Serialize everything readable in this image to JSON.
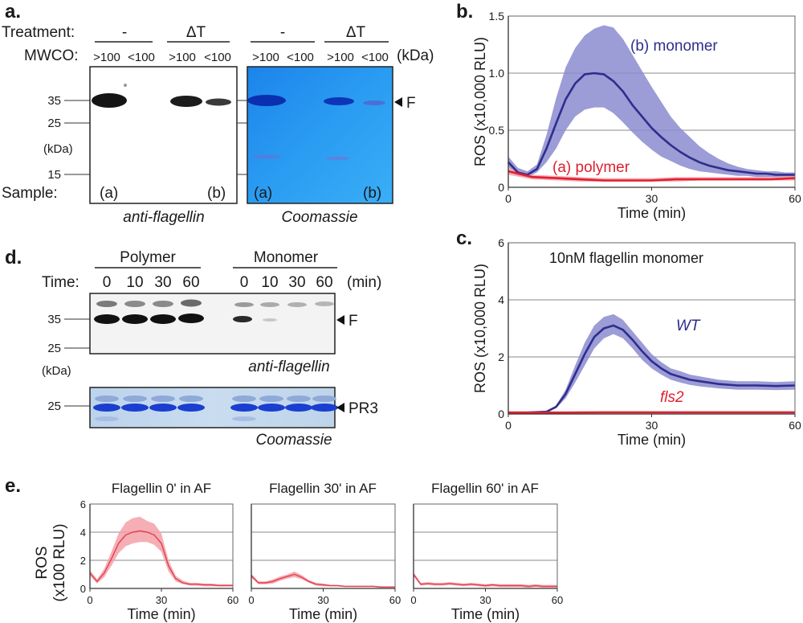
{
  "panel_a": {
    "label": "a.",
    "treatment_label": "Treatment:",
    "groups": [
      "-",
      "ΔT",
      "-",
      "ΔT"
    ],
    "mwco_label": "MWCO:",
    "mwco_values": [
      ">100",
      "<100",
      ">100",
      "<100",
      ">100",
      "<100",
      ">100",
      "<100"
    ],
    "mwco_unit": "(kDa)",
    "markers": [
      "35",
      "25",
      "15"
    ],
    "kda": "(kDa)",
    "sample_label": "Sample:",
    "samples": [
      "(a)",
      "(b)",
      "(a)",
      "(b)"
    ],
    "band_label": "F",
    "blot1_caption": "anti-flagellin",
    "blot2_caption": "Coomassie"
  },
  "panel_d": {
    "label": "d.",
    "groups": [
      "Polymer",
      "Monomer"
    ],
    "time_label": "Time:",
    "times": [
      "0",
      "10",
      "30",
      "60",
      "0",
      "10",
      "30",
      "60"
    ],
    "time_unit": "(min)",
    "markers_top": [
      "35",
      "25"
    ],
    "kda": "(kDa)",
    "markers_bottom": [
      "25"
    ],
    "band_top": "F",
    "band_bottom": "PR3",
    "caption_top": "anti-flagellin",
    "caption_bottom": "Coomassie"
  },
  "panel_e": {
    "label": "e.",
    "ylabel_line1": "ROS",
    "ylabel_line2": "(x100 RLU)"
  },
  "chart_data": [
    {
      "id": "b",
      "panel_label": "b.",
      "type": "line",
      "title": "",
      "xlabel": "Time (min)",
      "ylabel": "ROS (x10,000 RLU)",
      "xlim": [
        0,
        60
      ],
      "ylim": [
        0,
        1.5
      ],
      "xticks": [
        "0",
        "30",
        "60"
      ],
      "yticks": [
        "0",
        "0.5",
        "1.0",
        "1.5"
      ],
      "grid": true,
      "series": [
        {
          "name": "(b) monomer",
          "color": "#2e2e8c",
          "band_color": "#8b8bd0",
          "x": [
            0,
            2,
            4,
            6,
            8,
            10,
            12,
            14,
            16,
            18,
            20,
            22,
            24,
            26,
            28,
            30,
            32,
            34,
            36,
            38,
            40,
            42,
            44,
            46,
            48,
            50,
            52,
            54,
            56,
            58,
            60
          ],
          "y": [
            0.22,
            0.13,
            0.11,
            0.16,
            0.34,
            0.56,
            0.77,
            0.91,
            0.99,
            1.0,
            0.99,
            0.93,
            0.84,
            0.72,
            0.62,
            0.52,
            0.44,
            0.37,
            0.31,
            0.26,
            0.22,
            0.19,
            0.17,
            0.15,
            0.14,
            0.13,
            0.12,
            0.12,
            0.11,
            0.11,
            0.11
          ],
          "lower": [
            0.18,
            0.1,
            0.09,
            0.13,
            0.22,
            0.34,
            0.5,
            0.62,
            0.68,
            0.7,
            0.7,
            0.65,
            0.57,
            0.48,
            0.4,
            0.33,
            0.27,
            0.23,
            0.19,
            0.16,
            0.14,
            0.13,
            0.12,
            0.11,
            0.1,
            0.1,
            0.09,
            0.09,
            0.09,
            0.09,
            0.09
          ],
          "upper": [
            0.27,
            0.17,
            0.14,
            0.2,
            0.46,
            0.78,
            1.05,
            1.22,
            1.33,
            1.39,
            1.42,
            1.4,
            1.3,
            1.16,
            1.02,
            0.88,
            0.75,
            0.62,
            0.52,
            0.44,
            0.36,
            0.3,
            0.25,
            0.21,
            0.18,
            0.16,
            0.15,
            0.14,
            0.14,
            0.13,
            0.13
          ]
        },
        {
          "name": "(a) polymer",
          "color": "#e02030",
          "band_color": "#f4a0a8",
          "x": [
            0,
            5,
            10,
            15,
            20,
            25,
            30,
            35,
            40,
            45,
            50,
            55,
            60
          ],
          "y": [
            0.14,
            0.09,
            0.08,
            0.07,
            0.06,
            0.06,
            0.06,
            0.07,
            0.07,
            0.07,
            0.07,
            0.07,
            0.08
          ],
          "lower": [
            0.11,
            0.07,
            0.06,
            0.05,
            0.05,
            0.05,
            0.05,
            0.05,
            0.06,
            0.06,
            0.06,
            0.06,
            0.06
          ],
          "upper": [
            0.17,
            0.11,
            0.1,
            0.09,
            0.08,
            0.08,
            0.08,
            0.09,
            0.09,
            0.09,
            0.09,
            0.09,
            0.1
          ]
        }
      ]
    },
    {
      "id": "c",
      "panel_label": "c.",
      "type": "line",
      "title": "10nM flagellin monomer",
      "xlabel": "Time (min)",
      "ylabel": "ROS (x10,000 RLU)",
      "xlim": [
        0,
        60
      ],
      "ylim": [
        0,
        6
      ],
      "xticks": [
        "0",
        "30",
        "60"
      ],
      "yticks": [
        "0",
        "2",
        "4",
        "6"
      ],
      "grid": true,
      "series": [
        {
          "name": "WT",
          "color": "#2e2e8c",
          "band_color": "#8b8bd0",
          "x": [
            0,
            4,
            8,
            10,
            12,
            14,
            16,
            18,
            20,
            22,
            24,
            26,
            28,
            30,
            32,
            34,
            36,
            38,
            40,
            44,
            48,
            52,
            56,
            60
          ],
          "y": [
            0.05,
            0.05,
            0.08,
            0.25,
            0.7,
            1.4,
            2.1,
            2.7,
            3.0,
            3.1,
            2.95,
            2.6,
            2.2,
            1.85,
            1.6,
            1.4,
            1.3,
            1.2,
            1.15,
            1.05,
            1.0,
            1.0,
            0.98,
            1.0
          ],
          "lower": [
            0.04,
            0.04,
            0.06,
            0.2,
            0.55,
            1.1,
            1.7,
            2.3,
            2.65,
            2.8,
            2.65,
            2.3,
            1.9,
            1.6,
            1.38,
            1.2,
            1.1,
            1.02,
            0.97,
            0.9,
            0.85,
            0.85,
            0.84,
            0.85
          ],
          "upper": [
            0.06,
            0.06,
            0.1,
            0.3,
            0.85,
            1.7,
            2.5,
            3.1,
            3.4,
            3.5,
            3.3,
            2.9,
            2.5,
            2.1,
            1.82,
            1.6,
            1.5,
            1.38,
            1.32,
            1.2,
            1.15,
            1.15,
            1.12,
            1.15
          ]
        },
        {
          "name": "fls2",
          "color": "#e02030",
          "band_color": "#f4a0a8",
          "x": [
            0,
            10,
            20,
            30,
            40,
            50,
            60
          ],
          "y": [
            0.05,
            0.05,
            0.06,
            0.06,
            0.06,
            0.06,
            0.06
          ],
          "lower": [
            0.03,
            0.03,
            0.04,
            0.04,
            0.04,
            0.04,
            0.04
          ],
          "upper": [
            0.07,
            0.07,
            0.08,
            0.08,
            0.08,
            0.08,
            0.08
          ]
        }
      ]
    },
    {
      "id": "e1",
      "type": "line",
      "title": "Flagellin 0' in AF",
      "xlabel": "Time (min)",
      "ylabel": "",
      "xlim": [
        0,
        60
      ],
      "ylim": [
        0,
        6
      ],
      "xticks": [
        "0",
        "30",
        "60"
      ],
      "yticks": [
        "0",
        "2",
        "4",
        "6"
      ],
      "grid": true,
      "series": [
        {
          "name": "",
          "color": "#e04050",
          "band_color": "#f4a0a8",
          "x": [
            0,
            3,
            6,
            9,
            12,
            15,
            18,
            21,
            24,
            27,
            30,
            33,
            36,
            39,
            42,
            45,
            48,
            51,
            54,
            57,
            60
          ],
          "y": [
            1.1,
            0.5,
            1.1,
            2.1,
            3.2,
            3.8,
            4.0,
            4.1,
            4.0,
            3.8,
            3.2,
            1.6,
            0.7,
            0.4,
            0.3,
            0.3,
            0.25,
            0.25,
            0.2,
            0.2,
            0.2
          ],
          "lower": [
            0.9,
            0.35,
            0.8,
            1.6,
            2.5,
            3.0,
            3.2,
            3.3,
            3.3,
            3.1,
            2.6,
            1.2,
            0.5,
            0.3,
            0.2,
            0.2,
            0.15,
            0.15,
            0.15,
            0.15,
            0.15
          ],
          "upper": [
            1.3,
            0.65,
            1.4,
            2.6,
            3.9,
            4.7,
            5.0,
            5.1,
            4.8,
            4.6,
            3.9,
            2.0,
            0.9,
            0.55,
            0.4,
            0.4,
            0.35,
            0.35,
            0.3,
            0.3,
            0.3
          ]
        }
      ]
    },
    {
      "id": "e2",
      "type": "line",
      "title": "Flagellin 30' in AF",
      "xlabel": "Time (min)",
      "ylabel": "",
      "xlim": [
        0,
        60
      ],
      "ylim": [
        0,
        6
      ],
      "xticks": [
        "0",
        "30",
        "60"
      ],
      "yticks": [],
      "grid": true,
      "series": [
        {
          "name": "",
          "color": "#e04050",
          "band_color": "#f4a0a8",
          "x": [
            0,
            3,
            6,
            9,
            12,
            15,
            18,
            21,
            24,
            27,
            30,
            33,
            36,
            39,
            42,
            45,
            48,
            51,
            54,
            57,
            60
          ],
          "y": [
            0.9,
            0.4,
            0.4,
            0.5,
            0.7,
            0.85,
            1.0,
            0.8,
            0.5,
            0.3,
            0.25,
            0.2,
            0.2,
            0.15,
            0.15,
            0.15,
            0.15,
            0.15,
            0.1,
            0.1,
            0.1
          ],
          "lower": [
            0.75,
            0.3,
            0.3,
            0.35,
            0.55,
            0.7,
            0.8,
            0.65,
            0.4,
            0.2,
            0.15,
            0.15,
            0.15,
            0.1,
            0.1,
            0.1,
            0.1,
            0.1,
            0.05,
            0.05,
            0.05
          ],
          "upper": [
            1.05,
            0.5,
            0.5,
            0.65,
            0.85,
            1.0,
            1.2,
            0.95,
            0.6,
            0.4,
            0.35,
            0.25,
            0.25,
            0.2,
            0.2,
            0.2,
            0.2,
            0.2,
            0.15,
            0.15,
            0.15
          ]
        }
      ]
    },
    {
      "id": "e3",
      "type": "line",
      "title": "Flagellin 60' in AF",
      "xlabel": "Time (min)",
      "ylabel": "",
      "xlim": [
        0,
        60
      ],
      "ylim": [
        0,
        6
      ],
      "xticks": [
        "0",
        "30",
        "60"
      ],
      "yticks": [],
      "grid": true,
      "series": [
        {
          "name": "",
          "color": "#e04050",
          "band_color": "#f4a0a8",
          "x": [
            0,
            3,
            6,
            9,
            12,
            15,
            18,
            21,
            24,
            27,
            30,
            33,
            36,
            39,
            42,
            45,
            48,
            51,
            54,
            57,
            60
          ],
          "y": [
            1.0,
            0.3,
            0.35,
            0.3,
            0.3,
            0.35,
            0.3,
            0.25,
            0.3,
            0.25,
            0.2,
            0.25,
            0.2,
            0.2,
            0.2,
            0.2,
            0.15,
            0.2,
            0.15,
            0.15,
            0.15
          ],
          "lower": [
            0.85,
            0.2,
            0.25,
            0.2,
            0.2,
            0.25,
            0.2,
            0.15,
            0.2,
            0.15,
            0.1,
            0.15,
            0.1,
            0.1,
            0.1,
            0.1,
            0.05,
            0.1,
            0.05,
            0.05,
            0.05
          ],
          "upper": [
            1.15,
            0.4,
            0.45,
            0.4,
            0.4,
            0.45,
            0.4,
            0.35,
            0.4,
            0.35,
            0.3,
            0.35,
            0.3,
            0.3,
            0.3,
            0.3,
            0.25,
            0.3,
            0.25,
            0.25,
            0.25
          ]
        }
      ]
    }
  ]
}
